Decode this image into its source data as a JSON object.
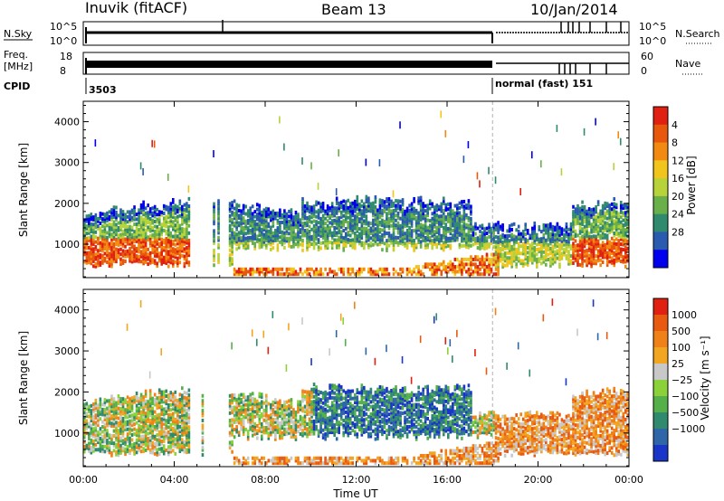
{
  "header": {
    "title": "Inuvik (fitACF)",
    "beam": "Beam 13",
    "date": "10/Jan/2014"
  },
  "status_panels": {
    "nsky_label": "N.Sky",
    "nsky_ticks": [
      "10^5",
      "10^0"
    ],
    "nsearch_label": "N.Search",
    "nsearch_ticks": [
      "10^5",
      "10^0"
    ],
    "freq_label_1": "Freq.",
    "freq_label_2": "[MHz]",
    "freq_ticks": [
      "18",
      "8"
    ],
    "nave_label": "Nave",
    "nave_ticks": [
      "60",
      "0"
    ],
    "cpid_label": "CPID",
    "cpid_first": "3503",
    "cpid_second": "normal (fast) 151"
  },
  "chart_data": [
    {
      "type": "heatmap",
      "name": "power",
      "xlabel": "",
      "ylabel": "Slant Range [km]",
      "x_ticks": [
        "00:00",
        "04:00",
        "08:00",
        "12:00",
        "16:00",
        "20:00",
        "00:00"
      ],
      "y_ticks": [
        1000,
        2000,
        3000,
        4000
      ],
      "xlim": [
        0,
        24
      ],
      "ylim": [
        180,
        4500
      ],
      "colorbar": {
        "label": "Power [dB]",
        "ticks": [
          "4",
          "8",
          "12",
          "16",
          "20",
          "24",
          "28"
        ],
        "colors": [
          "#0000ee",
          "#2a5bb0",
          "#2f8a6e",
          "#6ab04a",
          "#b8d23a",
          "#f2c51c",
          "#f28a12",
          "#e8580c",
          "#e02010"
        ]
      },
      "mode_change_time": 18.0
    },
    {
      "type": "heatmap",
      "name": "velocity",
      "xlabel": "Time UT",
      "ylabel": "Slant Range [km]",
      "x_ticks": [
        "00:00",
        "04:00",
        "08:00",
        "12:00",
        "16:00",
        "20:00",
        "00:00"
      ],
      "y_ticks": [
        1000,
        2000,
        3000,
        4000
      ],
      "xlim": [
        0,
        24
      ],
      "ylim": [
        180,
        4500
      ],
      "colorbar": {
        "label": "Velocity [m s⁻¹]",
        "ticks": [
          "1000",
          "500",
          "100",
          "25",
          "−25",
          "−100",
          "−500",
          "−1000"
        ],
        "colors": [
          "#1a36c8",
          "#2f66a8",
          "#2f8a6e",
          "#56b04a",
          "#8bd23a",
          "#c8c8c8",
          "#f2a520",
          "#f08018",
          "#e85a10",
          "#e02010"
        ]
      },
      "mode_change_time": 18.0
    }
  ]
}
